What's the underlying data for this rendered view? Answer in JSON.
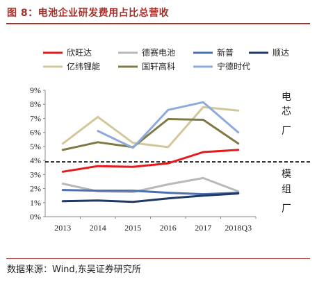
{
  "title": "图 8：电池企业研发费用占比总营收",
  "source": "数据来源：Wind,东吴证券研究所",
  "chart_data": {
    "type": "line",
    "categories": [
      "2013",
      "2014",
      "2015",
      "2016",
      "2017",
      "2018Q3"
    ],
    "ylim": [
      0,
      9
    ],
    "yticks": [
      "0%",
      "1%",
      "2%",
      "3%",
      "4%",
      "5%",
      "6%",
      "7%",
      "8%",
      "9%"
    ],
    "reference_line": 3.9,
    "side_labels": [
      "电",
      "芯",
      "厂",
      "模",
      "组",
      "厂"
    ],
    "legend_position": "top",
    "series": [
      {
        "name": "欣旺达",
        "color": "#e8191c",
        "values": [
          3.2,
          3.6,
          3.55,
          3.8,
          4.6,
          4.75
        ]
      },
      {
        "name": "德赛电池",
        "color": "#b9b9b9",
        "values": [
          2.35,
          1.8,
          1.75,
          2.3,
          2.75,
          1.8
        ]
      },
      {
        "name": "新普",
        "color": "#4b6fb0",
        "values": [
          1.9,
          1.85,
          1.85,
          1.7,
          1.6,
          1.7
        ]
      },
      {
        "name": "顺达",
        "color": "#1f3864",
        "values": [
          1.1,
          1.15,
          1.05,
          1.3,
          1.5,
          1.65
        ]
      },
      {
        "name": "亿纬锂能",
        "color": "#d2c79a",
        "values": [
          5.2,
          7.1,
          5.25,
          4.95,
          7.8,
          7.55
        ]
      },
      {
        "name": "国轩高科",
        "color": "#7f7a45",
        "values": [
          4.75,
          5.3,
          4.95,
          6.95,
          6.9,
          5.2
        ]
      },
      {
        "name": "宁德时代",
        "color": "#8eaadb",
        "values": [
          null,
          6.1,
          4.9,
          7.6,
          8.15,
          6.0
        ]
      }
    ]
  }
}
